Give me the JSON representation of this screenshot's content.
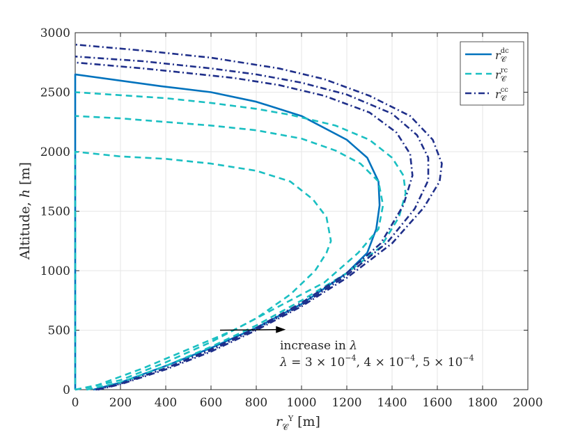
{
  "chart_data": {
    "type": "line",
    "xlabel": "r_C^Y [m]",
    "ylabel": "Altitude, h [m]",
    "xlim": [
      0,
      2000
    ],
    "ylim": [
      0,
      3000
    ],
    "xticks": [
      0,
      200,
      400,
      600,
      800,
      1000,
      1200,
      1400,
      1600,
      1800,
      2000
    ],
    "yticks": [
      0,
      500,
      1000,
      1500,
      2000,
      2500,
      3000
    ],
    "grid": true,
    "legend_position": "top-right",
    "colors": {
      "dc": "#0072BD",
      "rc": "#1ABFC2",
      "cc": "#1F2F8A"
    },
    "series": [
      {
        "name": "r_C^dc",
        "style": "solid",
        "color": "#0072BD",
        "x": [
          80,
          200,
          400,
          600,
          800,
          1000,
          1200,
          1290,
          1330,
          1345,
          1340,
          1290,
          1200,
          1000,
          800,
          600,
          380,
          0,
          0
        ],
        "y": [
          0,
          60,
          200,
          350,
          520,
          720,
          980,
          1150,
          1350,
          1550,
          1750,
          1950,
          2100,
          2300,
          2420,
          2500,
          2550,
          2650,
          0
        ]
      },
      {
        "name": "r_C^rc",
        "style": "dashed",
        "color": "#1ABFC2",
        "x": [
          0,
          60,
          200,
          400,
          600,
          800,
          950,
          1060,
          1110,
          1130,
          1110,
          1050,
          950,
          800,
          600,
          400,
          200,
          0,
          0
        ],
        "y": [
          0,
          20,
          80,
          230,
          400,
          600,
          800,
          1000,
          1150,
          1250,
          1450,
          1600,
          1750,
          1840,
          1900,
          1940,
          1960,
          2000,
          0
        ]
      },
      {
        "name": "r_C^rc",
        "style": "dashed",
        "color": "#1ABFC2",
        "x": [
          0,
          100,
          300,
          500,
          700,
          900,
          1100,
          1250,
          1340,
          1360,
          1340,
          1260,
          1150,
          1000,
          800,
          600,
          400,
          200,
          0
        ],
        "y": [
          0,
          40,
          180,
          340,
          500,
          700,
          900,
          1150,
          1350,
          1550,
          1750,
          1900,
          2010,
          2110,
          2180,
          2220,
          2250,
          2280,
          2300
        ]
      },
      {
        "name": "r_C^rc",
        "style": "dashed",
        "color": "#1ABFC2",
        "x": [
          50,
          200,
          400,
          600,
          800,
          1000,
          1200,
          1350,
          1430,
          1460,
          1450,
          1400,
          1300,
          1150,
          950,
          800,
          600,
          400,
          0
        ],
        "y": [
          0,
          60,
          200,
          360,
          540,
          750,
          980,
          1200,
          1450,
          1650,
          1800,
          1950,
          2100,
          2220,
          2310,
          2360,
          2410,
          2450,
          2500
        ]
      },
      {
        "name": "r_C^cc",
        "style": "dashdot",
        "color": "#1F2F8A",
        "x": [
          90,
          200,
          400,
          600,
          800,
          1000,
          1200,
          1350,
          1450,
          1490,
          1480,
          1420,
          1300,
          1100,
          900,
          700,
          500,
          300,
          0
        ],
        "y": [
          0,
          50,
          180,
          340,
          520,
          730,
          980,
          1230,
          1550,
          1800,
          1980,
          2160,
          2330,
          2470,
          2560,
          2620,
          2660,
          2700,
          2750
        ]
      },
      {
        "name": "r_C^cc",
        "style": "dashdot",
        "color": "#1F2F8A",
        "x": [
          90,
          200,
          400,
          600,
          800,
          1000,
          1200,
          1380,
          1500,
          1560,
          1560,
          1510,
          1400,
          1200,
          1000,
          800,
          600,
          300,
          0
        ],
        "y": [
          0,
          50,
          180,
          330,
          510,
          710,
          960,
          1240,
          1520,
          1760,
          1950,
          2140,
          2320,
          2480,
          2580,
          2650,
          2700,
          2760,
          2800
        ]
      },
      {
        "name": "r_C^cc",
        "style": "dashdot",
        "color": "#1F2F8A",
        "x": [
          100,
          200,
          400,
          600,
          800,
          1000,
          1200,
          1400,
          1540,
          1610,
          1620,
          1580,
          1480,
          1300,
          1100,
          900,
          600,
          300,
          0
        ],
        "y": [
          0,
          45,
          170,
          320,
          500,
          700,
          940,
          1230,
          1530,
          1750,
          1900,
          2100,
          2300,
          2470,
          2610,
          2700,
          2790,
          2850,
          2900
        ]
      }
    ],
    "legend": [
      {
        "label": "r_C^dc",
        "style": "solid",
        "color": "#0072BD"
      },
      {
        "label": "r_C^rc",
        "style": "dashed",
        "color": "#1ABFC2"
      },
      {
        "label": "r_C^cc",
        "style": "dashdot",
        "color": "#1F2F8A"
      }
    ],
    "annotations": {
      "line1": "increase in λ",
      "line2": "λ = 3 × 10^−4, 4 × 10^−4, 5 × 10^−4",
      "arrow_from": [
        640,
        500
      ],
      "arrow_to": [
        930,
        505
      ]
    }
  }
}
